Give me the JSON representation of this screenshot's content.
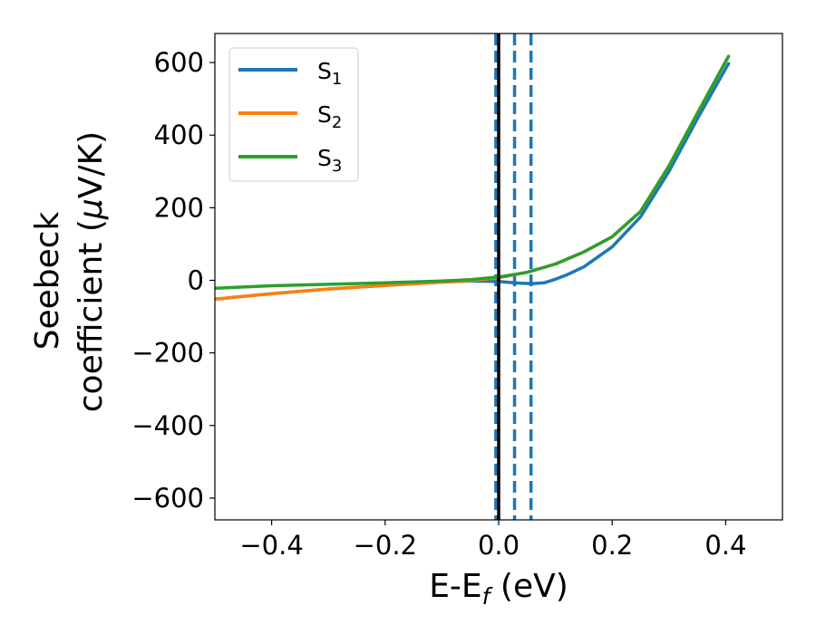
{
  "chart_data": {
    "type": "line",
    "xlabel_main": "E-E",
    "xlabel_sub": "f",
    "xlabel_unit": " (eV)",
    "ylabel_line1": "Seebeck",
    "ylabel_line2": "coefficient  (",
    "ylabel_mu": "μ",
    "ylabel_unit": "V/K)",
    "xlim": [
      -0.5,
      0.5
    ],
    "ylim": [
      -660,
      680
    ],
    "x_ticks": [
      -0.4,
      -0.2,
      0.0,
      0.2,
      0.4
    ],
    "x_tick_labels": [
      "−0.4",
      "−0.2",
      "0.0",
      "0.2",
      "0.4"
    ],
    "y_ticks": [
      -600,
      -400,
      -200,
      0,
      200,
      400,
      600
    ],
    "y_tick_labels": [
      "−600",
      "−400",
      "−200",
      "0",
      "200",
      "400",
      "600"
    ],
    "grid": false,
    "legend_position": "top-left",
    "series": [
      {
        "name": "S",
        "sub": "1",
        "color": "#1f77b4",
        "x": [
          -0.5,
          -0.4,
          -0.3,
          -0.2,
          -0.1,
          -0.05,
          0.0,
          0.02,
          0.04,
          0.06,
          0.08,
          0.1,
          0.12,
          0.15,
          0.2,
          0.25,
          0.3,
          0.35,
          0.405
        ],
        "y": [
          -52,
          -37,
          -24,
          -14,
          -5,
          -2,
          -3,
          -6,
          -8,
          -9,
          -7,
          3,
          15,
          37,
          92,
          175,
          300,
          445,
          597
        ]
      },
      {
        "name": "S",
        "sub": "2",
        "color": "#ff7f0e",
        "x": [
          -0.5,
          -0.4,
          -0.3,
          -0.2,
          -0.1,
          -0.05,
          0.0,
          0.05,
          0.1,
          0.15,
          0.2,
          0.25,
          0.3,
          0.35,
          0.405
        ],
        "y": [
          -52,
          -37,
          -24,
          -14,
          -5,
          -1,
          7,
          22,
          45,
          78,
          120,
          190,
          315,
          460,
          617
        ]
      },
      {
        "name": "S",
        "sub": "3",
        "color": "#2ca02c",
        "x": [
          -0.5,
          -0.4,
          -0.3,
          -0.2,
          -0.1,
          -0.05,
          0.0,
          0.05,
          0.1,
          0.15,
          0.2,
          0.25,
          0.3,
          0.35,
          0.405
        ],
        "y": [
          -22,
          -15,
          -11,
          -7,
          -2,
          2,
          9,
          22,
          45,
          78,
          120,
          190,
          315,
          460,
          617
        ]
      }
    ],
    "vertical_lines": [
      {
        "x": -0.005,
        "color": "#1f77b4",
        "style": "dashed"
      },
      {
        "x": 0.0,
        "color": "#000000",
        "style": "solid"
      },
      {
        "x": 0.028,
        "color": "#1f77b4",
        "style": "dashed"
      },
      {
        "x": 0.057,
        "color": "#1f77b4",
        "style": "dashed"
      }
    ]
  }
}
